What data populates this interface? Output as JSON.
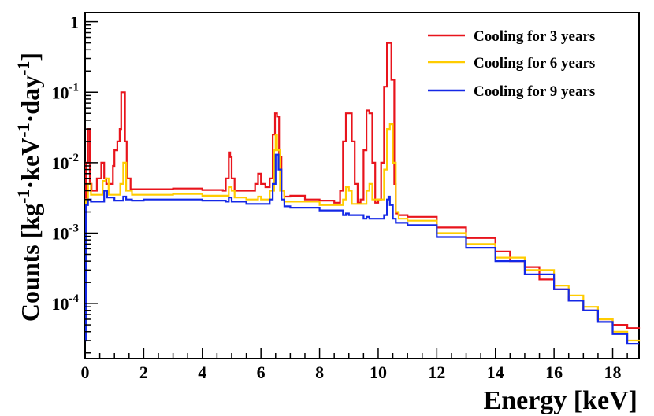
{
  "chart_data": {
    "type": "line",
    "title": "",
    "xlabel": "Energy [keV]",
    "ylabel_parts": {
      "prefix": "Counts [kg",
      "exp1": "-1",
      "mid": "·keV",
      "exp2": "-1",
      "mid2": "·day",
      "exp3": "-1",
      "suffix": "]"
    },
    "xlim": [
      0,
      18.9
    ],
    "ylim_log10": [
      -4.78,
      0.13
    ],
    "y_scale": "log",
    "x_ticks": [
      0,
      2,
      4,
      6,
      8,
      10,
      12,
      14,
      16,
      18
    ],
    "x_tick_labels": [
      "0",
      "2",
      "4",
      "6",
      "8",
      "10",
      "12",
      "14",
      "16",
      "18"
    ],
    "y_ticks": [
      {
        "value": 1,
        "base": "1",
        "exp": ""
      },
      {
        "value": 0.1,
        "base": "10",
        "exp": "-1"
      },
      {
        "value": 0.01,
        "base": "10",
        "exp": "-2"
      },
      {
        "value": 0.001,
        "base": "10",
        "exp": "-3"
      },
      {
        "value": 0.0001,
        "base": "10",
        "exp": "-4"
      }
    ],
    "legend_position": "top-right",
    "series": [
      {
        "name": "Cooling for 3 years",
        "color": "#e8141c",
        "x": [
          0.0,
          0.03,
          0.1,
          0.16,
          0.22,
          0.3,
          0.4,
          0.55,
          0.65,
          0.72,
          0.8,
          0.95,
          1.0,
          1.1,
          1.18,
          1.23,
          1.3,
          1.36,
          1.42,
          1.55,
          2.0,
          3.0,
          4.0,
          4.7,
          4.8,
          4.9,
          4.95,
          5.0,
          5.1,
          5.2,
          5.5,
          5.8,
          5.9,
          6.0,
          6.15,
          6.3,
          6.4,
          6.48,
          6.55,
          6.62,
          6.7,
          6.8,
          7.0,
          7.5,
          8.0,
          8.5,
          8.7,
          8.8,
          8.9,
          9.0,
          9.1,
          9.2,
          9.3,
          9.4,
          9.5,
          9.6,
          9.7,
          9.8,
          9.9,
          10.0,
          10.1,
          10.2,
          10.3,
          10.38,
          10.45,
          10.55,
          10.6,
          10.7,
          11.0,
          12.0,
          13.0,
          14.0,
          14.5,
          15.0,
          15.5,
          16.0,
          16.5,
          17.0,
          17.5,
          18.0,
          18.5,
          18.9
        ],
        "y": [
          0.0003,
          0.01,
          0.03,
          0.005,
          0.004,
          0.004,
          0.006,
          0.01,
          0.006,
          0.005,
          0.005,
          0.009,
          0.015,
          0.02,
          0.03,
          0.1,
          0.1,
          0.02,
          0.006,
          0.0042,
          0.0042,
          0.0043,
          0.0041,
          0.004,
          0.006,
          0.014,
          0.012,
          0.006,
          0.004,
          0.004,
          0.004,
          0.005,
          0.007,
          0.005,
          0.0045,
          0.006,
          0.025,
          0.05,
          0.045,
          0.012,
          0.004,
          0.0033,
          0.0034,
          0.003,
          0.0029,
          0.0027,
          0.004,
          0.02,
          0.05,
          0.05,
          0.02,
          0.005,
          0.0027,
          0.003,
          0.015,
          0.055,
          0.05,
          0.01,
          0.0027,
          0.003,
          0.01,
          0.12,
          0.5,
          0.5,
          0.15,
          0.005,
          0.0019,
          0.0018,
          0.0017,
          0.0012,
          0.00085,
          0.00055,
          0.0004,
          0.00033,
          0.00022,
          0.00016,
          0.00011,
          8e-05,
          6e-05,
          5e-05,
          4.5e-05,
          4.3e-05
        ]
      },
      {
        "name": "Cooling for 6 years",
        "color": "#ffcc00",
        "x": [
          0.0,
          0.03,
          0.1,
          0.2,
          0.4,
          0.6,
          0.7,
          0.8,
          1.0,
          1.2,
          1.3,
          1.4,
          1.6,
          2.0,
          3.0,
          4.0,
          4.8,
          4.9,
          5.0,
          5.1,
          5.5,
          5.9,
          6.0,
          6.3,
          6.45,
          6.5,
          6.55,
          6.65,
          6.8,
          7.0,
          8.0,
          8.8,
          8.9,
          9.0,
          9.1,
          9.6,
          9.7,
          9.8,
          10.2,
          10.3,
          10.4,
          10.5,
          10.6,
          10.7,
          11.0,
          12.0,
          13.0,
          14.0,
          15.0,
          16.0,
          16.5,
          17.0,
          17.5,
          18.0,
          18.5,
          18.9
        ],
        "y": [
          0.0003,
          0.003,
          0.005,
          0.0035,
          0.0035,
          0.0055,
          0.006,
          0.0035,
          0.0035,
          0.005,
          0.01,
          0.004,
          0.0035,
          0.0035,
          0.0036,
          0.0034,
          0.0034,
          0.0045,
          0.004,
          0.0032,
          0.003,
          0.0033,
          0.003,
          0.004,
          0.015,
          0.025,
          0.015,
          0.004,
          0.0028,
          0.0028,
          0.0025,
          0.003,
          0.0045,
          0.004,
          0.0026,
          0.004,
          0.005,
          0.003,
          0.008,
          0.03,
          0.035,
          0.01,
          0.002,
          0.0016,
          0.0015,
          0.001,
          0.0007,
          0.00045,
          0.0003,
          0.00018,
          0.00013,
          9e-05,
          6e-05,
          4e-05,
          3e-05,
          2.9e-05
        ]
      },
      {
        "name": "Cooling for 9 years",
        "color": "#1428e6",
        "x": [
          0.0,
          0.03,
          0.1,
          0.2,
          0.5,
          0.65,
          0.75,
          1.0,
          1.3,
          1.4,
          1.6,
          2.0,
          3.0,
          4.0,
          4.8,
          4.9,
          5.0,
          5.5,
          6.0,
          6.3,
          6.4,
          6.5,
          6.6,
          6.7,
          6.8,
          7.0,
          8.0,
          8.8,
          8.9,
          9.0,
          9.5,
          9.6,
          9.7,
          10.2,
          10.3,
          10.35,
          10.4,
          10.5,
          10.6,
          11.0,
          12.0,
          13.0,
          14.0,
          15.0,
          16.0,
          16.5,
          17.0,
          17.5,
          18.0,
          18.5,
          18.9
        ],
        "y": [
          3e-05,
          0.0025,
          0.003,
          0.0028,
          0.0028,
          0.004,
          0.0032,
          0.0029,
          0.0033,
          0.003,
          0.0029,
          0.003,
          0.003,
          0.0029,
          0.0028,
          0.0032,
          0.0028,
          0.0026,
          0.0026,
          0.003,
          0.005,
          0.013,
          0.008,
          0.003,
          0.0024,
          0.0023,
          0.0021,
          0.0018,
          0.0019,
          0.0018,
          0.0016,
          0.0017,
          0.0016,
          0.0018,
          0.003,
          0.0033,
          0.0025,
          0.0016,
          0.0014,
          0.0013,
          0.00088,
          0.00062,
          0.0004,
          0.00026,
          0.00016,
          0.00011,
          8e-05,
          5.5e-05,
          3.7e-05,
          2.7e-05,
          2.7e-05
        ]
      }
    ]
  }
}
